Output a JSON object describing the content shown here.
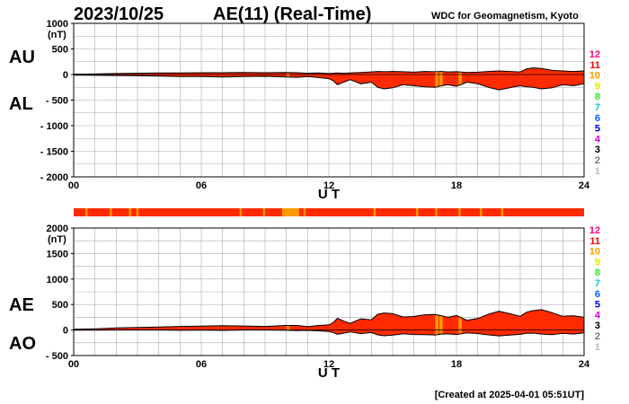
{
  "header": {
    "date": "2023/10/25",
    "title": "AE(11) (Real-Time)",
    "source": "WDC for Geomagnetism, Kyoto"
  },
  "footer": {
    "created": "[Created at 2025-04-01 05:51UT]"
  },
  "scale_legend": {
    "labels": [
      "12",
      "11",
      "10",
      "9",
      "8",
      "7",
      "6",
      "5",
      "4",
      "3",
      "2",
      "1"
    ],
    "colors": [
      "#ff0080",
      "#ff0000",
      "#ff9900",
      "#e8e800",
      "#33dd33",
      "#00cccc",
      "#0066ff",
      "#0000cc",
      "#cc00cc",
      "#000000",
      "#777777",
      "#bbbbbb"
    ]
  },
  "chart_data": [
    {
      "type": "area",
      "panel": "AU/AL",
      "labels": {
        "upper": "AU",
        "lower": "AL"
      },
      "unit": "(nT)",
      "xlabel": "U T",
      "xlim": [
        0,
        24
      ],
      "ylim": [
        -2000,
        1000
      ],
      "yticks": [
        {
          "v": 1000,
          "t": "1000"
        },
        {
          "v": 500,
          "t": "500"
        },
        {
          "v": 0,
          "t": "0"
        },
        {
          "v": -500,
          "t": "- 500"
        },
        {
          "v": -1000,
          "t": "- 1000"
        },
        {
          "v": -1500,
          "t": "- 1500"
        },
        {
          "v": -2000,
          "t": "- 2000"
        }
      ],
      "xticks": [
        "00",
        "06",
        "12",
        "18",
        "24"
      ],
      "grid": true,
      "colors": {
        "fill": "#ff2a00",
        "line": "#000000",
        "highlight": "#ff9900"
      },
      "x": [
        0,
        1,
        2,
        3,
        4,
        5,
        6,
        7,
        8,
        9,
        10,
        10.5,
        11,
        11.5,
        12,
        12.2,
        12.4,
        12.7,
        13,
        13.5,
        14,
        14.3,
        14.6,
        15,
        15.5,
        16,
        16.5,
        17,
        17.3,
        17.6,
        18,
        18.5,
        19,
        19.5,
        20,
        20.5,
        21,
        21.3,
        21.6,
        22,
        22.5,
        23,
        23.5,
        24
      ],
      "series": [
        {
          "role": "upper",
          "values": [
            5,
            10,
            20,
            25,
            30,
            30,
            35,
            35,
            40,
            35,
            40,
            35,
            25,
            30,
            20,
            25,
            30,
            25,
            30,
            40,
            50,
            60,
            55,
            60,
            55,
            45,
            60,
            55,
            60,
            50,
            55,
            40,
            45,
            60,
            70,
            60,
            50,
            110,
            130,
            120,
            80,
            70,
            60,
            70
          ]
        },
        {
          "role": "lower",
          "values": [
            -10,
            -15,
            -20,
            -25,
            -30,
            -40,
            -40,
            -50,
            -40,
            -35,
            -50,
            -55,
            -40,
            -60,
            -80,
            -120,
            -200,
            -150,
            -100,
            -180,
            -150,
            -250,
            -280,
            -260,
            -200,
            -220,
            -240,
            -250,
            -220,
            -200,
            -230,
            -150,
            -180,
            -250,
            -300,
            -260,
            -220,
            -240,
            -250,
            -280,
            -260,
            -200,
            -220,
            -180
          ]
        }
      ],
      "highlights": [
        10.0,
        17.0,
        17.2,
        18.1
      ]
    },
    {
      "type": "area",
      "panel": "AE/AO",
      "labels": {
        "upper": "AE",
        "lower": "AO"
      },
      "unit": "(nT)",
      "xlabel": "U T",
      "xlim": [
        0,
        24
      ],
      "ylim": [
        -500,
        2000
      ],
      "yticks": [
        {
          "v": 2000,
          "t": "2000"
        },
        {
          "v": 1500,
          "t": "1500"
        },
        {
          "v": 1000,
          "t": "1000"
        },
        {
          "v": 500,
          "t": "500"
        },
        {
          "v": 0,
          "t": "0"
        },
        {
          "v": -500,
          "t": "- 500"
        }
      ],
      "xticks": [
        "00",
        "06",
        "12",
        "18",
        "24"
      ],
      "grid": true,
      "colors": {
        "fill": "#ff2a00",
        "line": "#000000",
        "highlight": "#ff9900"
      },
      "x": [
        0,
        1,
        2,
        3,
        4,
        5,
        6,
        7,
        8,
        9,
        10,
        10.5,
        11,
        11.5,
        12,
        12.2,
        12.4,
        12.7,
        13,
        13.5,
        14,
        14.3,
        14.6,
        15,
        15.5,
        16,
        16.5,
        17,
        17.3,
        17.6,
        18,
        18.5,
        19,
        19.5,
        20,
        20.5,
        21,
        21.3,
        21.6,
        22,
        22.5,
        23,
        23.5,
        24
      ],
      "series": [
        {
          "role": "upper",
          "values": [
            15,
            25,
            40,
            50,
            60,
            70,
            75,
            85,
            80,
            70,
            90,
            90,
            65,
            90,
            100,
            145,
            230,
            175,
            130,
            220,
            200,
            310,
            335,
            320,
            255,
            265,
            300,
            305,
            280,
            250,
            285,
            190,
            225,
            310,
            370,
            320,
            270,
            350,
            380,
            400,
            340,
            270,
            280,
            250
          ]
        },
        {
          "role": "lower",
          "values": [
            -2,
            -3,
            0,
            0,
            0,
            -5,
            -2,
            -7,
            0,
            0,
            -5,
            -10,
            -7,
            -15,
            -30,
            -48,
            -85,
            -62,
            -35,
            -70,
            -50,
            -95,
            -112,
            -100,
            -72,
            -88,
            -90,
            -97,
            -80,
            -75,
            -88,
            -55,
            -68,
            -95,
            -115,
            -100,
            -85,
            -65,
            -60,
            -80,
            -90,
            -65,
            -80,
            -55
          ]
        }
      ],
      "highlights": [
        10.0,
        17.0,
        17.2,
        18.1
      ]
    }
  ],
  "status_bar": {
    "base": "#ff2a00",
    "segments": [
      {
        "start": 0.55,
        "end": 0.65,
        "color": "#ff9900"
      },
      {
        "start": 1.7,
        "end": 1.8,
        "color": "#ff9900"
      },
      {
        "start": 2.6,
        "end": 2.7,
        "color": "#ff9900"
      },
      {
        "start": 2.95,
        "end": 3.05,
        "color": "#ff9900"
      },
      {
        "start": 7.8,
        "end": 7.9,
        "color": "#ff9900"
      },
      {
        "start": 8.9,
        "end": 9.0,
        "color": "#ff9900"
      },
      {
        "start": 9.8,
        "end": 10.6,
        "color": "#ff9900"
      },
      {
        "start": 10.8,
        "end": 10.9,
        "color": "#ff9900"
      },
      {
        "start": 14.1,
        "end": 14.2,
        "color": "#ff9900"
      },
      {
        "start": 16.1,
        "end": 16.2,
        "color": "#ff9900"
      },
      {
        "start": 17.0,
        "end": 17.1,
        "color": "#ff9900"
      },
      {
        "start": 18.1,
        "end": 18.2,
        "color": "#ff9900"
      },
      {
        "start": 19.1,
        "end": 19.2,
        "color": "#ff9900"
      },
      {
        "start": 20.1,
        "end": 20.2,
        "color": "#ff9900"
      }
    ]
  }
}
